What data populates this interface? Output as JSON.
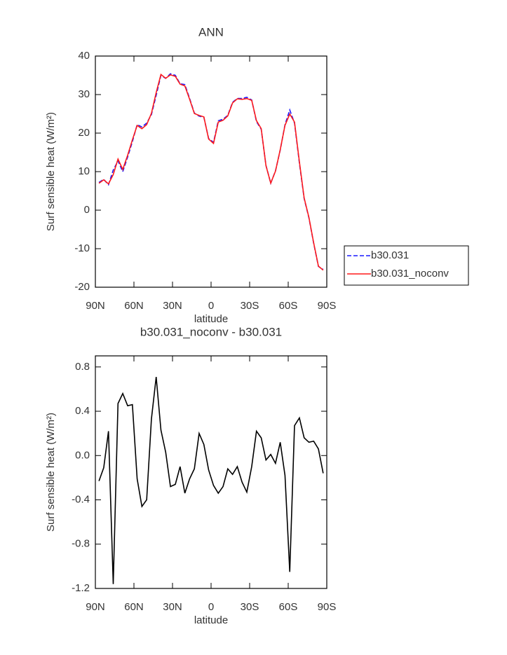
{
  "chart_data": [
    {
      "type": "line",
      "title": "ANN",
      "xlabel": "latitude",
      "ylabel": "Surf sensible heat (W/m²)",
      "x": [
        87.2,
        83.5,
        79.8,
        76.1,
        72.4,
        68.7,
        64.9,
        61.2,
        57.5,
        53.8,
        50.1,
        46.4,
        42.7,
        39.0,
        35.3,
        31.6,
        27.8,
        24.1,
        20.4,
        16.7,
        13.0,
        9.3,
        5.6,
        1.9,
        -1.9,
        -5.6,
        -9.3,
        -13.0,
        -16.7,
        -20.4,
        -24.1,
        -27.8,
        -31.6,
        -35.3,
        -39.0,
        -42.7,
        -46.4,
        -50.1,
        -53.8,
        -57.5,
        -61.2,
        -64.9,
        -68.7,
        -72.4,
        -76.1,
        -79.8,
        -83.5,
        -87.2
      ],
      "series": [
        {
          "name": "b30.031",
          "color": "#1a1aff",
          "dashed": true,
          "values": [
            7.2,
            8.0,
            6.6,
            10.4,
            12.8,
            10.0,
            13.8,
            17.8,
            22.2,
            21.6,
            22.6,
            24.8,
            29.8,
            35.0,
            34.2,
            35.4,
            35.0,
            32.8,
            32.6,
            29.0,
            25.2,
            24.4,
            24.1,
            18.6,
            17.6,
            23.2,
            23.6,
            24.6,
            28.0,
            29.0,
            29.0,
            29.3,
            28.6,
            23.0,
            21.0,
            11.6,
            7.0,
            10.2,
            15.6,
            22.2,
            26.0,
            22.6,
            12.2,
            3.0,
            -2.0,
            -8.6,
            -14.6,
            -15.4
          ]
        },
        {
          "name": "b30.031_noconv",
          "color": "#ff1a1a",
          "dashed": false,
          "values": [
            6.97,
            7.89,
            6.82,
            9.24,
            13.27,
            10.56,
            14.25,
            18.26,
            21.99,
            21.14,
            22.2,
            25.13,
            30.51,
            35.23,
            34.23,
            35.12,
            34.74,
            32.7,
            32.26,
            28.79,
            25.08,
            24.6,
            24.2,
            18.47,
            17.33,
            22.86,
            23.32,
            24.48,
            27.83,
            28.9,
            28.76,
            28.97,
            28.5,
            23.22,
            21.16,
            11.56,
            7.01,
            10.13,
            15.72,
            22.02,
            24.95,
            22.87,
            12.54,
            3.16,
            -1.88,
            -8.47,
            -14.54,
            -15.56
          ]
        }
      ],
      "xlim": [
        90,
        -90
      ],
      "xticks": [
        {
          "value": 90,
          "label": "90N"
        },
        {
          "value": 60,
          "label": "60N"
        },
        {
          "value": 30,
          "label": "30N"
        },
        0,
        {
          "value": -30,
          "label": "30S"
        },
        {
          "value": -60,
          "label": "60S"
        },
        {
          "value": -90,
          "label": "90S"
        }
      ],
      "ylim": [
        -20,
        40
      ],
      "yticks": [
        -20,
        -10,
        0,
        10,
        20,
        30,
        40
      ],
      "legend": "right"
    },
    {
      "type": "line",
      "title": "b30.031_noconv - b30.031",
      "xlabel": "latitude",
      "ylabel": "Surf sensible heat (W/m²)",
      "x": [
        87.2,
        83.5,
        79.8,
        76.1,
        72.4,
        68.7,
        64.9,
        61.2,
        57.5,
        53.8,
        50.1,
        46.4,
        42.7,
        39.0,
        35.3,
        31.6,
        27.8,
        24.1,
        20.4,
        16.7,
        13.0,
        9.3,
        5.6,
        1.9,
        -1.9,
        -5.6,
        -9.3,
        -13.0,
        -16.7,
        -20.4,
        -24.1,
        -27.8,
        -31.6,
        -35.3,
        -39.0,
        -42.7,
        -46.4,
        -50.1,
        -53.8,
        -57.5,
        -61.2,
        -64.9,
        -68.7,
        -72.4,
        -76.1,
        -79.8,
        -83.5,
        -87.2
      ],
      "values": [
        -0.23,
        -0.11,
        0.22,
        -1.16,
        0.47,
        0.56,
        0.45,
        0.46,
        -0.21,
        -0.46,
        -0.4,
        0.33,
        0.71,
        0.23,
        0.03,
        -0.28,
        -0.26,
        -0.1,
        -0.34,
        -0.21,
        -0.12,
        0.2,
        0.1,
        -0.13,
        -0.27,
        -0.34,
        -0.28,
        -0.12,
        -0.17,
        -0.1,
        -0.24,
        -0.33,
        -0.1,
        0.22,
        0.16,
        -0.04,
        0.01,
        -0.07,
        0.12,
        -0.18,
        -1.05,
        0.27,
        0.34,
        0.16,
        0.12,
        0.13,
        0.06,
        -0.16
      ],
      "color": "#000000",
      "xlim": [
        90,
        -90
      ],
      "xticks": [
        {
          "value": 90,
          "label": "90N"
        },
        {
          "value": 60,
          "label": "60N"
        },
        {
          "value": 30,
          "label": "30N"
        },
        0,
        {
          "value": -30,
          "label": "30S"
        },
        {
          "value": -60,
          "label": "60S"
        },
        {
          "value": -90,
          "label": "90S"
        }
      ],
      "ylim": [
        -1.2,
        0.9
      ],
      "yticks": [
        -1.2,
        -0.8,
        -0.4,
        {
          "value": 0,
          "label": "0.0"
        },
        0.4,
        0.8
      ]
    }
  ]
}
